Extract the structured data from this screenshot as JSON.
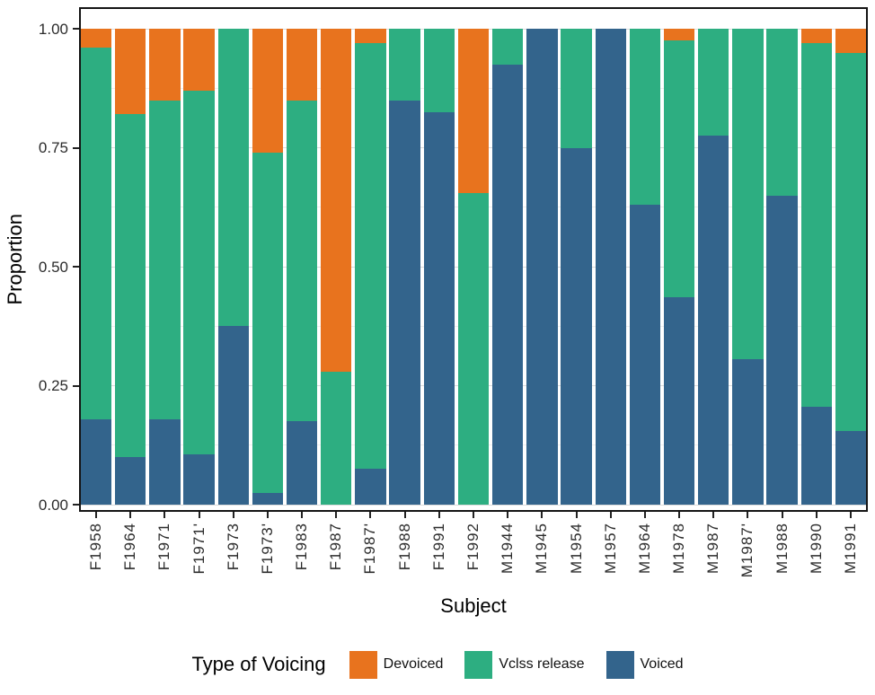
{
  "figure": {
    "y_axis_title": "Proportion",
    "x_axis_title": "Subject",
    "legend_title": "Type of Voicing"
  },
  "colors": {
    "background": "#FFFFFF",
    "panel_border": "#141414",
    "grid_major": "#DCDCDC",
    "grid_minor": "#EFEFEF",
    "devoiced": "#E8731E",
    "vclss_release": "#2DAE81",
    "voiced": "#33648C"
  },
  "chart_data": {
    "type": "bar",
    "stacked": true,
    "orientation": "vertical",
    "title": "",
    "xlabel": "Subject",
    "ylabel": "Proportion",
    "ylim": [
      0,
      1
    ],
    "yticks": [
      0,
      0.25,
      0.5,
      0.75,
      1
    ],
    "ytick_labels": [
      "0.00",
      "0.25",
      "0.50",
      "0.75",
      "1.00"
    ],
    "grid": "major-and-minor-horizontal",
    "legend_position": "bottom",
    "categories": [
      "F1958",
      "F1964",
      "F1971",
      "F1971'",
      "F1973",
      "F1973'",
      "F1983",
      "F1987",
      "F1987'",
      "F1988",
      "F1991",
      "F1992",
      "M1944",
      "M1945",
      "M1954",
      "M1957",
      "M1964",
      "M1978",
      "M1987",
      "M1987'",
      "M1988",
      "M1990",
      "M1991"
    ],
    "stack_order_bottom_to_top": [
      "Voiced",
      "Vclss release",
      "Devoiced"
    ],
    "series": [
      {
        "name": "Devoiced",
        "color": "#E8731E",
        "values": [
          0.04,
          0.18,
          0.15,
          0.13,
          0,
          0.26,
          0.15,
          0.72,
          0.03,
          0,
          0,
          0.345,
          0,
          0,
          0,
          0,
          0,
          0.025,
          0,
          0,
          0,
          0.03,
          0.05
        ]
      },
      {
        "name": "Vclss release",
        "color": "#2DAE81",
        "values": [
          0.78,
          0.72,
          0.67,
          0.765,
          0.625,
          0.715,
          0.675,
          0.28,
          0.895,
          0.15,
          0.175,
          0.655,
          0.075,
          0,
          0.25,
          0,
          0.37,
          0.54,
          0.225,
          0.695,
          0.35,
          0.765,
          0.795
        ]
      },
      {
        "name": "Voiced",
        "color": "#33648C",
        "values": [
          0.18,
          0.1,
          0.18,
          0.105,
          0.375,
          0.025,
          0.175,
          0,
          0.075,
          0.85,
          0.825,
          0,
          0.925,
          1,
          0.75,
          1,
          0.63,
          0.435,
          0.775,
          0.305,
          0.65,
          0.205,
          0.155
        ]
      }
    ]
  }
}
